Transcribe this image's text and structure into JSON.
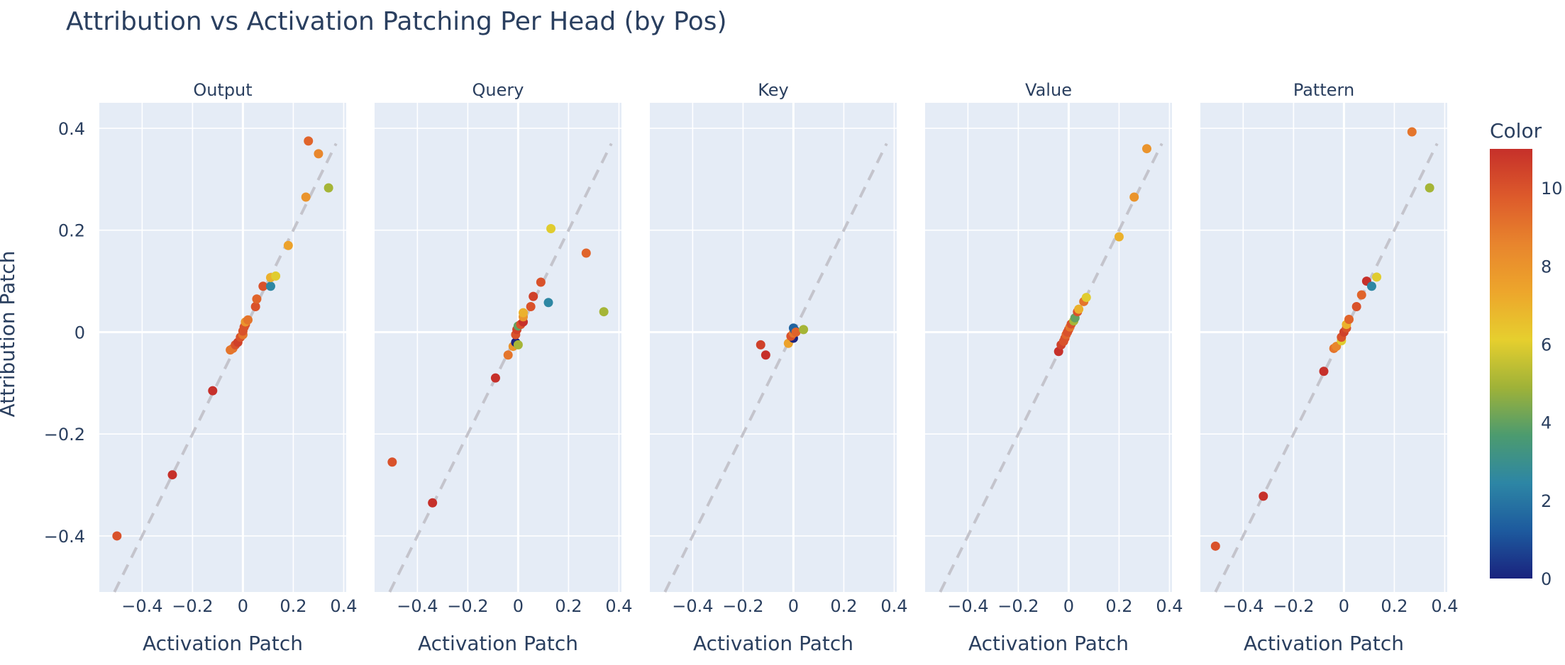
{
  "title": "Attribution vs Activation Patching Per Head (by Pos)",
  "y_axis_label": "Attribution Patch",
  "colorbar": {
    "title": "Color",
    "range": [
      0,
      11
    ],
    "ticks": [
      "0",
      "2",
      "4",
      "6",
      "8",
      "10"
    ],
    "tick_values": [
      0,
      2,
      4,
      6,
      8,
      10
    ],
    "colorscale": [
      "#1a237e",
      "#1d5a9e",
      "#2d86a5",
      "#4c9b6f",
      "#9fb238",
      "#e6cf2e",
      "#eda62c",
      "#e8852d",
      "#dd5a2b",
      "#c6302a"
    ]
  },
  "colors": {
    "plot_bg": "#e5ecf6",
    "grid": "#ffffff",
    "diagonal": "#c4c4cc",
    "text": "#2a3f5f"
  },
  "chart_data": [
    {
      "type": "scatter",
      "subplot_title": "Output",
      "xlabel": "Activation Patch",
      "x_ticks": [
        "−0.4",
        "−0.2",
        "0",
        "0.2",
        "0.4"
      ],
      "x_tick_values": [
        -0.4,
        -0.2,
        0,
        0.2,
        0.4
      ],
      "y_ticks": [
        "0.4",
        "0.2",
        "0",
        "−0.2",
        "−0.4"
      ],
      "y_tick_values": [
        0.4,
        0.2,
        0,
        -0.2,
        -0.4
      ],
      "xlim": [
        -0.57,
        0.41
      ],
      "ylim": [
        -0.51,
        0.45
      ],
      "reference_line": "y = x (dashed)",
      "points": [
        {
          "x": -0.5,
          "y": -0.4,
          "c": 10
        },
        {
          "x": -0.28,
          "y": -0.28,
          "c": 11
        },
        {
          "x": -0.12,
          "y": -0.115,
          "c": 11
        },
        {
          "x": -0.05,
          "y": -0.035,
          "c": 9
        },
        {
          "x": -0.04,
          "y": -0.032,
          "c": 9
        },
        {
          "x": -0.03,
          "y": -0.025,
          "c": 10
        },
        {
          "x": -0.02,
          "y": -0.02,
          "c": 10.5
        },
        {
          "x": -0.01,
          "y": -0.01,
          "c": 10
        },
        {
          "x": 0.0,
          "y": -0.005,
          "c": 9
        },
        {
          "x": 0.0,
          "y": 0.002,
          "c": 10
        },
        {
          "x": 0.005,
          "y": 0.01,
          "c": 10
        },
        {
          "x": 0.01,
          "y": 0.015,
          "c": 10
        },
        {
          "x": 0.01,
          "y": 0.02,
          "c": 8
        },
        {
          "x": 0.02,
          "y": 0.024,
          "c": 9
        },
        {
          "x": 0.05,
          "y": 0.05,
          "c": 10
        },
        {
          "x": 0.055,
          "y": 0.065,
          "c": 9.5
        },
        {
          "x": 0.08,
          "y": 0.09,
          "c": 10
        },
        {
          "x": 0.11,
          "y": 0.09,
          "c": 2.5
        },
        {
          "x": 0.11,
          "y": 0.107,
          "c": 7
        },
        {
          "x": 0.13,
          "y": 0.11,
          "c": 6
        },
        {
          "x": 0.18,
          "y": 0.17,
          "c": 7.5
        },
        {
          "x": 0.25,
          "y": 0.265,
          "c": 8
        },
        {
          "x": 0.26,
          "y": 0.375,
          "c": 9.5
        },
        {
          "x": 0.3,
          "y": 0.35,
          "c": 8.5
        },
        {
          "x": 0.34,
          "y": 0.283,
          "c": 5
        }
      ]
    },
    {
      "type": "scatter",
      "subplot_title": "Query",
      "xlabel": "Activation Patch",
      "x_ticks": [
        "−0.4",
        "−0.2",
        "0",
        "0.2",
        "0.4"
      ],
      "x_tick_values": [
        -0.4,
        -0.2,
        0,
        0.2,
        0.4
      ],
      "xlim": [
        -0.57,
        0.41
      ],
      "ylim": [
        -0.51,
        0.45
      ],
      "reference_line": "y = x (dashed)",
      "points": [
        {
          "x": -0.5,
          "y": -0.255,
          "c": 10
        },
        {
          "x": -0.34,
          "y": -0.335,
          "c": 11
        },
        {
          "x": -0.09,
          "y": -0.09,
          "c": 11
        },
        {
          "x": -0.04,
          "y": -0.045,
          "c": 9
        },
        {
          "x": -0.02,
          "y": -0.028,
          "c": 8
        },
        {
          "x": -0.01,
          "y": -0.02,
          "c": 0
        },
        {
          "x": 0.0,
          "y": -0.025,
          "c": 5
        },
        {
          "x": -0.01,
          "y": -0.005,
          "c": 10
        },
        {
          "x": -0.005,
          "y": 0.005,
          "c": 10.5
        },
        {
          "x": 0.0,
          "y": 0.012,
          "c": 4
        },
        {
          "x": 0.01,
          "y": 0.015,
          "c": 10
        },
        {
          "x": 0.02,
          "y": 0.02,
          "c": 11
        },
        {
          "x": 0.02,
          "y": 0.03,
          "c": 8
        },
        {
          "x": 0.02,
          "y": 0.038,
          "c": 7
        },
        {
          "x": 0.05,
          "y": 0.05,
          "c": 10
        },
        {
          "x": 0.06,
          "y": 0.07,
          "c": 10.5
        },
        {
          "x": 0.09,
          "y": 0.098,
          "c": 10
        },
        {
          "x": 0.12,
          "y": 0.058,
          "c": 2.5
        },
        {
          "x": 0.13,
          "y": 0.203,
          "c": 6
        },
        {
          "x": 0.27,
          "y": 0.155,
          "c": 9.5
        },
        {
          "x": 0.34,
          "y": 0.04,
          "c": 5
        }
      ]
    },
    {
      "type": "scatter",
      "subplot_title": "Key",
      "xlabel": "Activation Patch",
      "x_ticks": [
        "−0.4",
        "−0.2",
        "0",
        "0.2",
        "0.4"
      ],
      "x_tick_values": [
        -0.4,
        -0.2,
        0,
        0.2,
        0.4
      ],
      "xlim": [
        -0.57,
        0.41
      ],
      "ylim": [
        -0.51,
        0.45
      ],
      "reference_line": "y = x (dashed)",
      "points": [
        {
          "x": -0.13,
          "y": -0.025,
          "c": 10.5
        },
        {
          "x": -0.11,
          "y": -0.045,
          "c": 11
        },
        {
          "x": -0.02,
          "y": -0.022,
          "c": 7.5
        },
        {
          "x": 0.0,
          "y": -0.012,
          "c": 0
        },
        {
          "x": -0.01,
          "y": -0.008,
          "c": 10
        },
        {
          "x": 0.0,
          "y": -0.002,
          "c": 9
        },
        {
          "x": 0.005,
          "y": 0.004,
          "c": 1
        },
        {
          "x": 0.0,
          "y": 0.008,
          "c": 1.5
        },
        {
          "x": 0.01,
          "y": 0.0,
          "c": 9.5
        },
        {
          "x": 0.04,
          "y": 0.005,
          "c": 5
        }
      ]
    },
    {
      "type": "scatter",
      "subplot_title": "Value",
      "xlabel": "Activation Patch",
      "x_ticks": [
        "−0.4",
        "−0.2",
        "0",
        "0.2",
        "0.4"
      ],
      "x_tick_values": [
        -0.4,
        -0.2,
        0,
        0.2,
        0.4
      ],
      "xlim": [
        -0.57,
        0.41
      ],
      "ylim": [
        -0.51,
        0.45
      ],
      "reference_line": "y = x (dashed)",
      "points": [
        {
          "x": -0.04,
          "y": -0.038,
          "c": 11
        },
        {
          "x": -0.03,
          "y": -0.025,
          "c": 10.5
        },
        {
          "x": -0.02,
          "y": -0.018,
          "c": 10
        },
        {
          "x": -0.015,
          "y": -0.012,
          "c": 10
        },
        {
          "x": -0.01,
          "y": -0.005,
          "c": 9.5
        },
        {
          "x": -0.005,
          "y": 0.0,
          "c": 10
        },
        {
          "x": 0.0,
          "y": 0.005,
          "c": 10
        },
        {
          "x": 0.005,
          "y": 0.01,
          "c": 9
        },
        {
          "x": 0.01,
          "y": 0.016,
          "c": 10
        },
        {
          "x": 0.02,
          "y": 0.022,
          "c": 5
        },
        {
          "x": 0.025,
          "y": 0.028,
          "c": 4
        },
        {
          "x": 0.035,
          "y": 0.04,
          "c": 10
        },
        {
          "x": 0.04,
          "y": 0.045,
          "c": 7
        },
        {
          "x": 0.06,
          "y": 0.06,
          "c": 9
        },
        {
          "x": 0.07,
          "y": 0.068,
          "c": 6
        },
        {
          "x": 0.2,
          "y": 0.187,
          "c": 7
        },
        {
          "x": 0.26,
          "y": 0.265,
          "c": 8
        },
        {
          "x": 0.31,
          "y": 0.36,
          "c": 8
        }
      ]
    },
    {
      "type": "scatter",
      "subplot_title": "Pattern",
      "xlabel": "Activation Patch",
      "x_ticks": [
        "−0.4",
        "−0.2",
        "0",
        "0.2",
        "0.4"
      ],
      "x_tick_values": [
        -0.4,
        -0.2,
        0,
        0.2,
        0.4
      ],
      "xlim": [
        -0.57,
        0.41
      ],
      "ylim": [
        -0.51,
        0.45
      ],
      "reference_line": "y = x (dashed)",
      "points": [
        {
          "x": -0.51,
          "y": -0.42,
          "c": 10
        },
        {
          "x": -0.32,
          "y": -0.322,
          "c": 11
        },
        {
          "x": -0.08,
          "y": -0.077,
          "c": 11
        },
        {
          "x": -0.04,
          "y": -0.032,
          "c": 9
        },
        {
          "x": -0.03,
          "y": -0.028,
          "c": 8.5
        },
        {
          "x": -0.01,
          "y": -0.017,
          "c": 6
        },
        {
          "x": -0.01,
          "y": -0.01,
          "c": 10
        },
        {
          "x": 0.0,
          "y": 0.0,
          "c": 10.5
        },
        {
          "x": 0.01,
          "y": 0.008,
          "c": 10
        },
        {
          "x": 0.01,
          "y": 0.015,
          "c": 7
        },
        {
          "x": 0.02,
          "y": 0.025,
          "c": 9.5
        },
        {
          "x": 0.05,
          "y": 0.05,
          "c": 10
        },
        {
          "x": 0.07,
          "y": 0.073,
          "c": 9.5
        },
        {
          "x": 0.09,
          "y": 0.1,
          "c": 11
        },
        {
          "x": 0.11,
          "y": 0.09,
          "c": 2.5
        },
        {
          "x": 0.13,
          "y": 0.108,
          "c": 6
        },
        {
          "x": 0.27,
          "y": 0.393,
          "c": 9
        },
        {
          "x": 0.34,
          "y": 0.283,
          "c": 5
        }
      ]
    }
  ]
}
